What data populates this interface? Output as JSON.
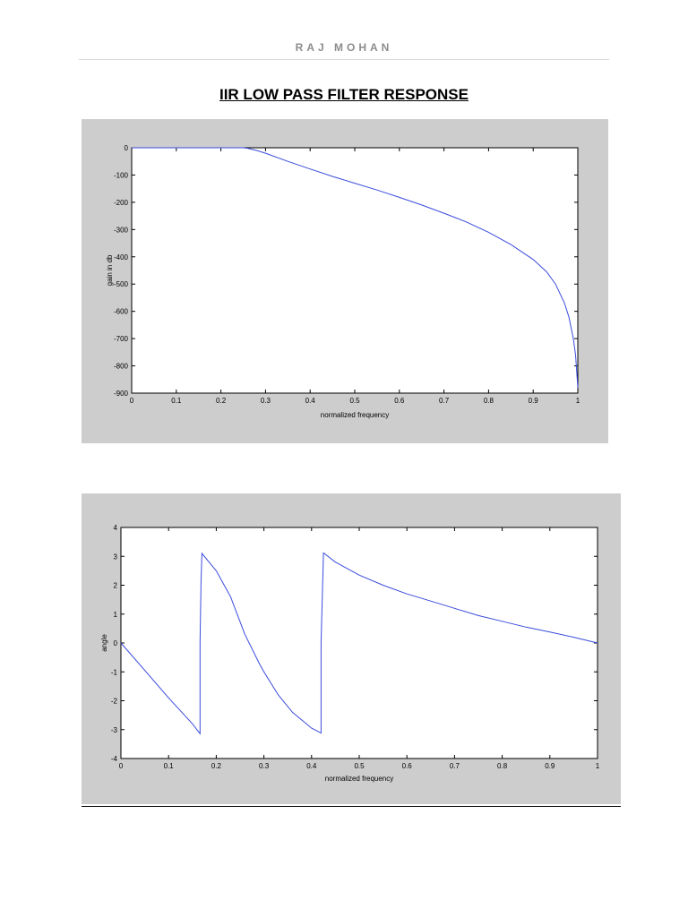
{
  "header": {
    "author": "RAJ MOHAN"
  },
  "title": "IIR LOW PASS FILTER RESPONSE",
  "colors": {
    "line": "#3a4bdc",
    "figure_bg": "#cdcdcd",
    "axes_bg": "#ffffff"
  },
  "chart_data": [
    {
      "type": "line",
      "xlabel": "normalized frequency",
      "ylabel": "gain in db",
      "xlim": [
        0,
        1
      ],
      "ylim": [
        -900,
        0
      ],
      "xticks": [
        0,
        0.1,
        0.2,
        0.3,
        0.4,
        0.5,
        0.6,
        0.7,
        0.8,
        0.9,
        1
      ],
      "xtick_labels": [
        "0",
        "0.1",
        "0.2",
        "0.3",
        "0.4",
        "0.5",
        "0.6",
        "0.7",
        "0.8",
        "0.9",
        "1"
      ],
      "yticks": [
        0,
        -100,
        -200,
        -300,
        -400,
        -500,
        -600,
        -700,
        -800,
        -900
      ],
      "ytick_labels": [
        "0",
        "-100",
        "-200",
        "-300",
        "-400",
        "-500",
        "-600",
        "-700",
        "-800",
        "-900"
      ],
      "grid": false,
      "series": [
        {
          "x": [
            0,
            0.1,
            0.2,
            0.25,
            0.26,
            0.28,
            0.3,
            0.35,
            0.4,
            0.45,
            0.5,
            0.55,
            0.6,
            0.65,
            0.7,
            0.75,
            0.8,
            0.85,
            0.9,
            0.93,
            0.95,
            0.97,
            0.98,
            0.99,
            0.995,
            1.0
          ],
          "y": [
            0,
            0,
            0,
            0,
            -2,
            -10,
            -20,
            -50,
            -78,
            -105,
            -130,
            -155,
            -182,
            -210,
            -240,
            -272,
            -310,
            -355,
            -410,
            -455,
            -500,
            -570,
            -620,
            -700,
            -760,
            -880
          ]
        }
      ]
    },
    {
      "type": "line",
      "xlabel": "normalized frequency",
      "ylabel": "angle",
      "xlim": [
        0,
        1
      ],
      "ylim": [
        -4,
        4
      ],
      "xticks": [
        0,
        0.1,
        0.2,
        0.3,
        0.4,
        0.5,
        0.6,
        0.7,
        0.8,
        0.9,
        1
      ],
      "xtick_labels": [
        "0",
        "0.1",
        "0.2",
        "0.3",
        "0.4",
        "0.5",
        "0.6",
        "0.7",
        "0.8",
        "0.9",
        "1"
      ],
      "yticks": [
        4,
        3,
        2,
        1,
        0,
        -1,
        -2,
        -3,
        -4
      ],
      "ytick_labels": [
        "4",
        "3",
        "2",
        "1",
        "0",
        "-1",
        "-2",
        "-3",
        "-4"
      ],
      "grid": false,
      "series": [
        {
          "x": [
            0,
            0.05,
            0.1,
            0.15,
            0.166,
            0.166,
            0.168,
            0.17,
            0.2,
            0.23,
            0.26,
            0.29,
            0.3,
            0.33,
            0.36,
            0.4,
            0.42,
            0.42,
            0.425,
            0.45,
            0.5,
            0.55,
            0.6,
            0.65,
            0.7,
            0.75,
            0.8,
            0.85,
            0.9,
            0.95,
            1.0
          ],
          "y": [
            0,
            -0.95,
            -1.9,
            -2.8,
            -3.14,
            0,
            2.1,
            3.1,
            2.5,
            1.6,
            0.3,
            -0.7,
            -1.0,
            -1.8,
            -2.4,
            -2.95,
            -3.12,
            0,
            3.12,
            2.8,
            2.35,
            2.0,
            1.7,
            1.45,
            1.2,
            0.95,
            0.75,
            0.55,
            0.38,
            0.2,
            0.0
          ]
        }
      ]
    }
  ]
}
